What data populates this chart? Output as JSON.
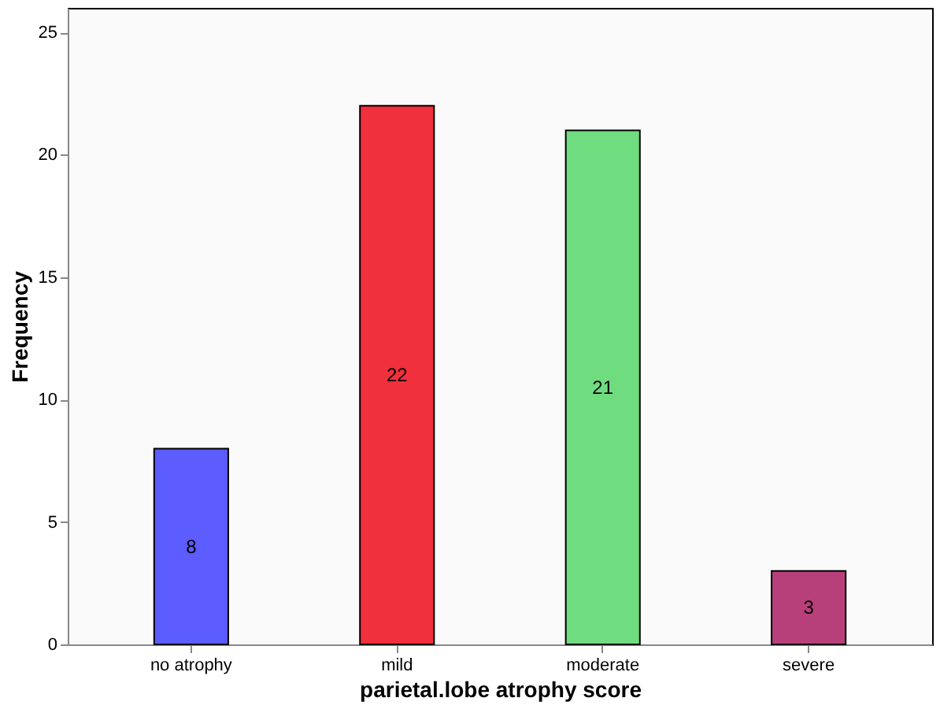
{
  "chart_data": {
    "type": "bar",
    "xlabel": "parietal.lobe atrophy score",
    "ylabel": "Frequency",
    "categories": [
      "no atrophy",
      "mild",
      "moderate",
      "severe"
    ],
    "values": [
      8,
      22,
      21,
      3
    ],
    "colors": [
      "#5c5cff",
      "#f0303c",
      "#70dc80",
      "#b8407a"
    ],
    "ylim": [
      0,
      26
    ],
    "yticks": [
      0,
      5,
      10,
      15,
      20,
      25
    ],
    "grid": false,
    "data_labels": true
  }
}
